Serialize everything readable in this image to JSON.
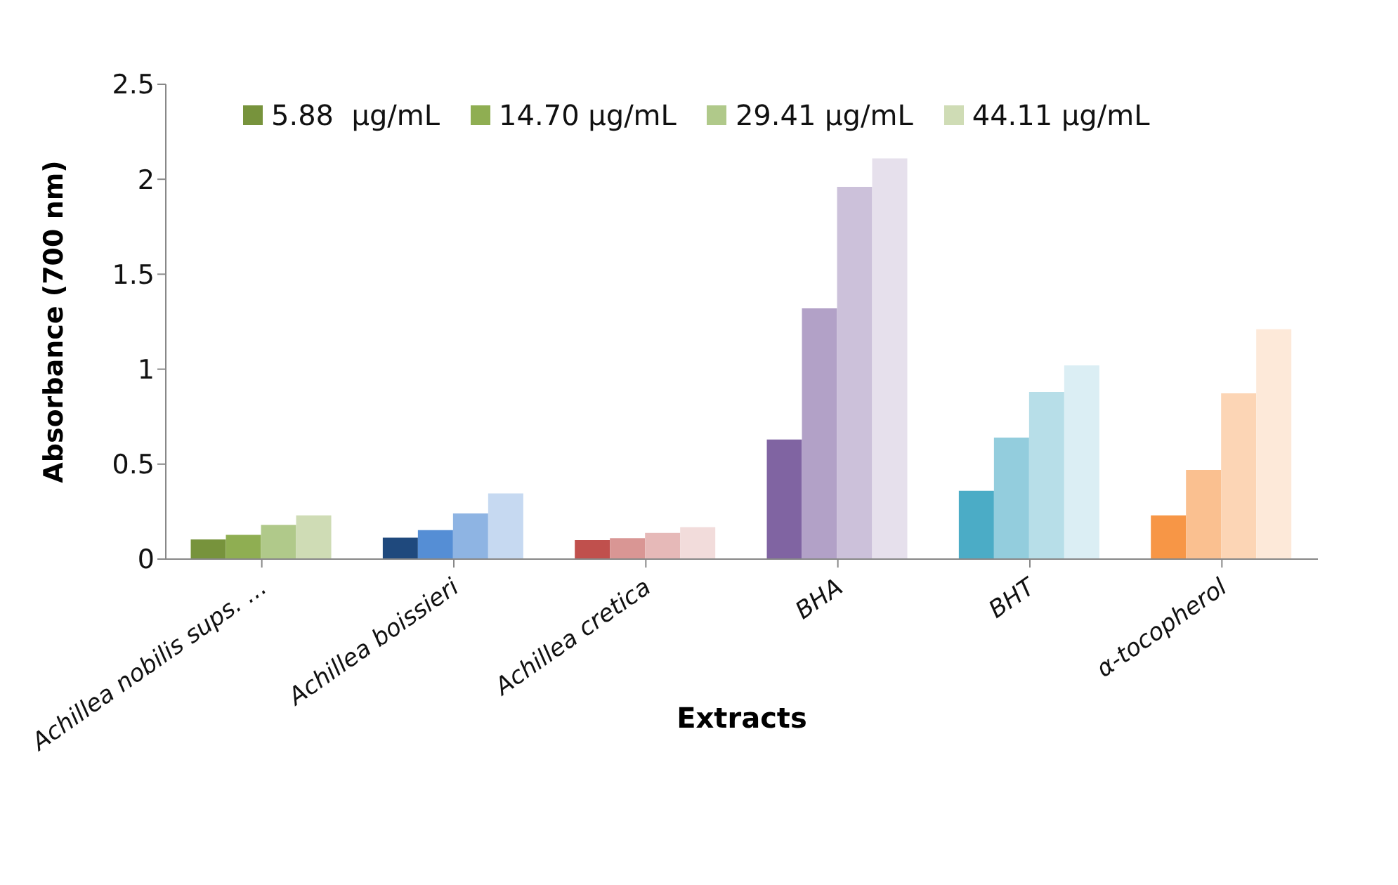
{
  "chart_data": {
    "type": "bar",
    "xlabel": "Extracts",
    "ylabel": "Absorbance (700 nm)",
    "categories": [
      "Achillea nobilis sups. ...",
      "Achillea boissieri",
      "Achillea cretica",
      "BHA",
      "BHT",
      "α-tocopherol"
    ],
    "series": [
      {
        "name": "5.88  µg/mL",
        "color": "#77933c",
        "values": [
          0.104,
          0.113,
          0.1,
          0.63,
          0.36,
          0.23
        ],
        "colors": [
          "#77933c",
          "#1f497d",
          "#c0504d",
          "#8064a2",
          "#4bacc6",
          "#f79646"
        ]
      },
      {
        "name": "14.70 µg/mL",
        "color": "#8fae52",
        "values": [
          0.128,
          0.153,
          0.11,
          1.32,
          0.64,
          0.47
        ],
        "colors": [
          "#8fae52",
          "#558ed5",
          "#d99694",
          "#b2a1c7",
          "#93cddd",
          "#fac090"
        ]
      },
      {
        "name": "29.41 µg/mL",
        "color": "#b0c98a",
        "values": [
          0.18,
          0.24,
          0.138,
          1.96,
          0.88,
          0.873
        ],
        "colors": [
          "#b0c98a",
          "#8eb4e3",
          "#e6b9b8",
          "#ccc1da",
          "#b7dee8",
          "#fcd5b5"
        ]
      },
      {
        "name": "44.11 µg/mL",
        "color": "#cfdcb5",
        "values": [
          0.23,
          0.346,
          0.168,
          2.11,
          1.02,
          1.21
        ],
        "colors": [
          "#cfdcb5",
          "#c6d9f1",
          "#f2dcdb",
          "#e6e0ec",
          "#dbeef4",
          "#fde9d9"
        ]
      }
    ],
    "ylim": [
      0,
      2.5
    ],
    "yticks": [
      0,
      0.5,
      1,
      1.5,
      2,
      2.5
    ],
    "legend": "top"
  }
}
